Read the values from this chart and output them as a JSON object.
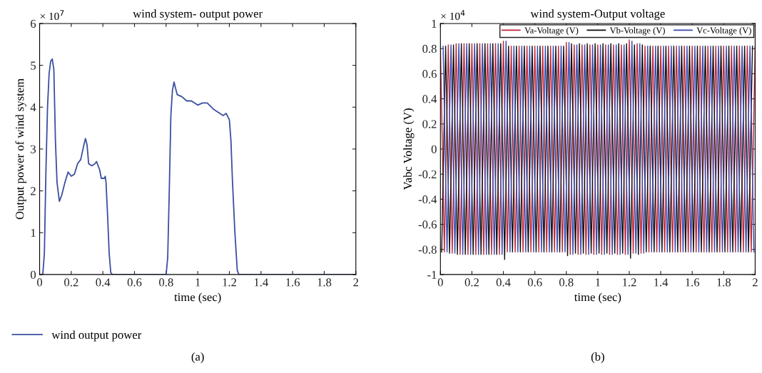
{
  "chart_data": [
    {
      "type": "line",
      "title": "wind system- output power",
      "xlabel": "time (sec)",
      "ylabel": "Output power of wind system",
      "annotations": [
        "× 10$^{7}$",
        "(a)"
      ],
      "xlim": [
        0,
        2
      ],
      "ylim": [
        0,
        6
      ],
      "xticks": [
        0,
        0.2,
        0.4,
        0.6,
        0.8,
        1,
        1.2,
        1.4,
        1.6,
        1.8,
        2
      ],
      "yticks": [
        0,
        1,
        2,
        3,
        4,
        5,
        6
      ],
      "grid": false,
      "legend": "bottom",
      "marker": "none",
      "line_style": "solid",
      "series": [
        {
          "name": "wind output power",
          "color": "#3a4fa0",
          "x": [
            0,
            0.02,
            0.03,
            0.04,
            0.05,
            0.06,
            0.07,
            0.08,
            0.09,
            0.1,
            0.11,
            0.125,
            0.14,
            0.16,
            0.18,
            0.2,
            0.22,
            0.24,
            0.26,
            0.28,
            0.29,
            0.3,
            0.31,
            0.33,
            0.35,
            0.36,
            0.38,
            0.39,
            0.41,
            0.415,
            0.42,
            0.43,
            0.44,
            0.45,
            0.46,
            0.8,
            0.81,
            0.82,
            0.83,
            0.84,
            0.85,
            0.86,
            0.87,
            0.9,
            0.93,
            0.96,
            1.0,
            1.03,
            1.06,
            1.1,
            1.14,
            1.16,
            1.18,
            1.2,
            1.21,
            1.22,
            1.235,
            1.25,
            1.26,
            2
          ],
          "values": [
            0,
            0,
            0.5,
            2.5,
            4.0,
            4.8,
            5.1,
            5.15,
            4.9,
            3.2,
            2.2,
            1.75,
            1.9,
            2.2,
            2.45,
            2.35,
            2.4,
            2.65,
            2.75,
            3.1,
            3.25,
            3.1,
            2.65,
            2.6,
            2.65,
            2.7,
            2.5,
            2.3,
            2.3,
            2.35,
            2.2,
            1.4,
            0.5,
            0.05,
            0,
            0,
            0.4,
            2.0,
            3.8,
            4.4,
            4.6,
            4.45,
            4.3,
            4.25,
            4.15,
            4.15,
            4.05,
            4.1,
            4.1,
            3.95,
            3.85,
            3.8,
            3.85,
            3.7,
            3.2,
            2.2,
            1.0,
            0.1,
            0,
            0
          ]
        }
      ]
    },
    {
      "type": "line",
      "title": "wind system-Output voltage",
      "xlabel": "time (sec)",
      "ylabel": "Vabc Voltage (V)",
      "annotations": [
        "× 10$^{4}$",
        "(b)"
      ],
      "xlim": [
        0,
        2
      ],
      "ylim": [
        -1,
        1
      ],
      "xticks": [
        0,
        0.2,
        0.4,
        0.6,
        0.8,
        1,
        1.2,
        1.4,
        1.6,
        1.8,
        2
      ],
      "yticks": [
        -1,
        -0.8,
        -0.6,
        -0.4,
        -0.2,
        0,
        0.2,
        0.4,
        0.6,
        0.8,
        1
      ],
      "grid": false,
      "legend": "top right",
      "marker": "none",
      "line_style": "solid",
      "series": [
        {
          "name": "Va-Voltage (V)",
          "color": "#c0283c",
          "x": [
            0,
            0.025,
            0.05,
            0.075,
            0.1,
            0.125,
            0.15,
            0.175,
            0.2,
            0.225,
            0.25,
            0.275,
            0.3,
            0.325,
            0.35,
            0.375,
            0.4,
            0.425,
            0.45,
            0.475,
            0.5,
            0.525,
            0.55,
            0.575,
            0.6,
            0.625,
            0.65,
            0.675,
            0.7,
            0.725,
            0.75,
            0.775,
            0.8,
            0.825,
            0.85,
            0.875,
            0.9,
            0.925,
            0.95,
            0.975,
            1,
            1.025,
            1.05,
            1.075,
            1.1,
            1.125,
            1.15,
            1.175,
            1.2,
            1.225,
            1.25,
            1.275,
            1.3,
            1.325,
            1.35,
            1.375,
            1.4,
            1.425,
            1.45,
            1.475,
            1.5,
            1.525,
            1.55,
            1.575,
            1.6,
            1.625,
            1.65,
            1.675,
            1.7,
            1.725,
            1.75,
            1.775,
            1.8,
            1.825,
            1.85,
            1.875,
            1.9,
            1.925,
            1.95,
            1.975,
            2
          ],
          "values": [
            0.82,
            -0.82,
            0.83,
            -0.83,
            0.84,
            -0.84,
            0.84,
            -0.84,
            0.84,
            -0.84,
            0.84,
            -0.84,
            0.84,
            -0.84,
            0.84,
            -0.84,
            0.86,
            -0.82,
            0.82,
            -0.82,
            0.82,
            -0.82,
            0.82,
            -0.82,
            0.82,
            -0.82,
            0.82,
            -0.82,
            0.82,
            -0.82,
            0.82,
            -0.82,
            0.85,
            -0.84,
            0.83,
            -0.84,
            0.83,
            -0.84,
            0.83,
            -0.84,
            0.83,
            -0.84,
            0.83,
            -0.84,
            0.83,
            -0.84,
            0.83,
            -0.84,
            0.87,
            -0.83,
            0.84,
            -0.83,
            0.82,
            -0.82,
            0.82,
            -0.82,
            0.82,
            -0.82,
            0.82,
            -0.82,
            0.82,
            -0.82,
            0.82,
            -0.82,
            0.82,
            -0.82,
            0.82,
            -0.82,
            0.82,
            -0.82,
            0.82,
            -0.82,
            0.82,
            -0.82,
            0.82,
            -0.82,
            0.82,
            -0.82,
            0.82,
            -0.82,
            0.82
          ]
        },
        {
          "name": "Vb-Voltage (V)",
          "color": "#111111",
          "x": [
            0.008,
            0.033,
            0.058,
            0.083,
            0.108,
            0.133,
            0.158,
            0.183,
            0.208,
            0.233,
            0.258,
            0.283,
            0.308,
            0.333,
            0.358,
            0.383,
            0.408,
            0.433,
            0.458,
            0.483,
            0.508,
            0.533,
            0.558,
            0.583,
            0.608,
            0.633,
            0.658,
            0.683,
            0.708,
            0.733,
            0.758,
            0.783,
            0.808,
            0.833,
            0.858,
            0.883,
            0.908,
            0.933,
            0.958,
            0.983,
            1.008,
            1.033,
            1.058,
            1.083,
            1.108,
            1.133,
            1.158,
            1.183,
            1.208,
            1.233,
            1.258,
            1.283,
            1.308,
            1.333,
            1.358,
            1.383,
            1.408,
            1.433,
            1.458,
            1.483,
            1.508,
            1.533,
            1.558,
            1.583,
            1.608,
            1.633,
            1.658,
            1.683,
            1.708,
            1.733,
            1.758,
            1.783,
            1.808,
            1.833,
            1.858,
            1.883,
            1.908,
            1.933,
            1.958,
            1.983
          ],
          "values": [
            -0.82,
            0.82,
            -0.83,
            0.83,
            -0.84,
            0.84,
            -0.84,
            0.84,
            -0.84,
            0.84,
            -0.84,
            0.84,
            -0.84,
            0.84,
            -0.84,
            0.84,
            -0.88,
            0.82,
            -0.82,
            0.82,
            -0.82,
            0.82,
            -0.82,
            0.82,
            -0.82,
            0.82,
            -0.82,
            0.82,
            -0.82,
            0.82,
            -0.82,
            0.82,
            -0.85,
            0.84,
            -0.83,
            0.84,
            -0.83,
            0.84,
            -0.83,
            0.84,
            -0.83,
            0.84,
            -0.83,
            0.84,
            -0.83,
            0.84,
            -0.83,
            0.84,
            -0.87,
            0.83,
            -0.84,
            0.83,
            -0.82,
            0.82,
            -0.82,
            0.82,
            -0.82,
            0.82,
            -0.82,
            0.82,
            -0.82,
            0.82,
            -0.82,
            0.82,
            -0.82,
            0.82,
            -0.82,
            0.82,
            -0.82,
            0.82,
            -0.82,
            0.82,
            -0.82,
            0.82,
            -0.82,
            0.82,
            -0.82,
            0.82,
            -0.82,
            0.82
          ]
        },
        {
          "name": "Vc-Voltage (V)",
          "color": "#3a4ab0",
          "x": [
            0.017,
            0.042,
            0.067,
            0.092,
            0.117,
            0.142,
            0.167,
            0.192,
            0.217,
            0.242,
            0.267,
            0.292,
            0.317,
            0.342,
            0.367,
            0.392,
            0.417,
            0.442,
            0.467,
            0.492,
            0.517,
            0.542,
            0.567,
            0.592,
            0.617,
            0.642,
            0.667,
            0.692,
            0.717,
            0.742,
            0.767,
            0.792,
            0.817,
            0.842,
            0.867,
            0.892,
            0.917,
            0.942,
            0.967,
            0.992,
            1.017,
            1.042,
            1.067,
            1.092,
            1.117,
            1.142,
            1.167,
            1.192,
            1.217,
            1.242,
            1.267,
            1.292,
            1.317,
            1.342,
            1.367,
            1.392,
            1.417,
            1.442,
            1.467,
            1.492,
            1.517,
            1.542,
            1.567,
            1.592,
            1.617,
            1.642,
            1.667,
            1.692,
            1.717,
            1.742,
            1.767,
            1.792,
            1.817,
            1.842,
            1.867,
            1.892,
            1.917,
            1.942,
            1.967,
            1.992
          ],
          "values": [
            0.82,
            -0.82,
            0.83,
            -0.83,
            0.84,
            -0.84,
            0.84,
            -0.84,
            0.84,
            -0.84,
            0.84,
            -0.84,
            0.84,
            -0.84,
            0.84,
            -0.84,
            0.86,
            -0.82,
            0.82,
            -0.82,
            0.82,
            -0.82,
            0.82,
            -0.82,
            0.82,
            -0.82,
            0.82,
            -0.82,
            0.82,
            -0.82,
            0.82,
            -0.82,
            0.85,
            -0.84,
            0.83,
            -0.84,
            0.83,
            -0.84,
            0.83,
            -0.84,
            0.83,
            -0.84,
            0.83,
            -0.84,
            0.83,
            -0.84,
            0.83,
            -0.84,
            0.86,
            -0.83,
            0.84,
            -0.83,
            0.82,
            -0.82,
            0.82,
            -0.82,
            0.82,
            -0.82,
            0.82,
            -0.82,
            0.82,
            -0.82,
            0.82,
            -0.82,
            0.82,
            -0.82,
            0.82,
            -0.82,
            0.82,
            -0.82,
            0.82,
            -0.82,
            0.82,
            -0.82,
            0.82,
            -0.82,
            0.82,
            -0.82,
            0.82,
            -0.82
          ]
        }
      ]
    }
  ]
}
